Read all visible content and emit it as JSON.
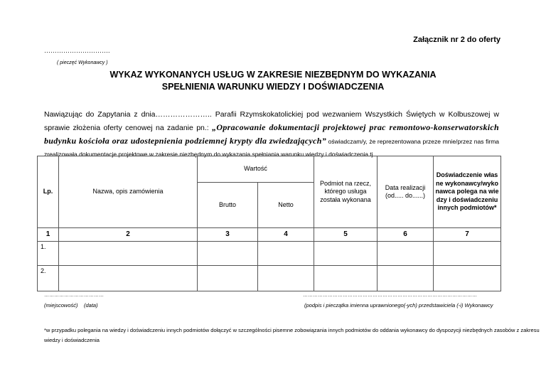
{
  "attachment": "Załącznik nr 2 do oferty",
  "stamp": {
    "dots": "………………………….",
    "label": "( pieczęć Wykonawcy )"
  },
  "title": {
    "line1": "WYKAZ WYKONANYCH USŁUG W ZAKRESIE NIEZBĘDNYM DO WYKAZANIA",
    "line2": "SPEŁNIENIA WARUNKU WIEDZY  I DOŚWIADCZENIA"
  },
  "paragraph": {
    "intro": "Nawiązując do Zapytania z dnia………………….. Parafii Rzymskokatolickiej pod wezwaniem Wszystkich Świętych w Kolbuszowej w sprawie złożenia oferty cenowej na zadanie pn.: ",
    "project": "„Opracowanie dokumentacji projektowej prac remontowo-konserwatorskich budynku kościoła oraz udostepnienia podziemnej krypty dla zwiedzających”",
    "rest": " oświadczam/y, że reprezentowana przeze mnie/przez nas firma zrealizowała dokumentacje projektowe w zakresie niezbędnym do wykazania spełniania warunku wiedzy i doświadczenia tj."
  },
  "table": {
    "headers": {
      "lp": "Lp.",
      "name": "Nazwa, opis zamówienia",
      "value": "Wartość",
      "gross": "Brutto",
      "net": "Netto",
      "entity": "Podmiot na rzecz, którego usługa została wykonana",
      "date": "Data realizacji (od..... do......)",
      "experience": "Doświadczenie własne wykonawcy/wykonawca polega na wiedzy i doświadczeniu innych podmiotów*"
    },
    "numbers": [
      "1",
      "2",
      "3",
      "4",
      "5",
      "6",
      "7"
    ],
    "rows": [
      "1.",
      "2."
    ]
  },
  "signature": {
    "left_dots": "………………………………",
    "place": "(miejscowość)",
    "date": "(data)",
    "right_dots": "……………………………………………………………………………………………",
    "right_label": "(podpis i pieczątka imienna uprawnionego(-ych) przedstawiciela (-i) Wykonawcy"
  },
  "footnote": {
    "line1": "*w przypadku polegania na wiedzy i doświadczeniu innych podmiotów dołączyć w szczególności pisemne zobowiązania innych podmiotów do oddania wykonawcy do dyspozycji niezbędnych zasobów z zakresu",
    "line2": "wiedzy i doświadczenia"
  }
}
